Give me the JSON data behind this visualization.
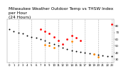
{
  "title": "Milwaukee Weather Outdoor Temp vs THSW Index",
  "title2": "per Hour",
  "title3": "(24 Hours)",
  "bg_color": "#ffffff",
  "grid_color": "#888888",
  "xlim": [
    -0.5,
    23.5
  ],
  "ylim": [
    25,
    90
  ],
  "ytick_values": [
    30,
    40,
    50,
    60,
    70,
    80
  ],
  "xtick_labels": [
    "0",
    "1",
    "2",
    "3",
    "4",
    "5",
    "6",
    "7",
    "8",
    "9",
    "10",
    "11",
    "12",
    "13",
    "14",
    "15",
    "16",
    "17",
    "18",
    "19",
    "20",
    "21",
    "22",
    "23"
  ],
  "temp_color": "#ff0000",
  "thsw_color": "#ff8800",
  "dot_color": "#000000",
  "vgrid_hours": [
    2,
    5,
    8,
    11,
    14,
    17,
    20,
    23
  ],
  "temp_data": [
    [
      7,
      75
    ],
    [
      8,
      72
    ],
    [
      9,
      68
    ],
    [
      10,
      63
    ],
    [
      11,
      58
    ],
    [
      12,
      53
    ],
    [
      13,
      60
    ],
    [
      14,
      65
    ],
    [
      15,
      62
    ],
    [
      16,
      58
    ],
    [
      23,
      82
    ]
  ],
  "thsw_data": [
    [
      8,
      52
    ],
    [
      9,
      50
    ],
    [
      10,
      47
    ],
    [
      14,
      57
    ],
    [
      19,
      38
    ],
    [
      20,
      33
    ]
  ],
  "black_data": [
    [
      0,
      75
    ],
    [
      1,
      72
    ],
    [
      2,
      70
    ],
    [
      3,
      68
    ],
    [
      4,
      65
    ],
    [
      5,
      63
    ],
    [
      6,
      62
    ],
    [
      7,
      60
    ],
    [
      8,
      58
    ],
    [
      9,
      55
    ],
    [
      10,
      53
    ],
    [
      11,
      50
    ],
    [
      12,
      47
    ],
    [
      13,
      45
    ],
    [
      14,
      43
    ],
    [
      15,
      42
    ],
    [
      16,
      41
    ],
    [
      17,
      40
    ],
    [
      18,
      39
    ],
    [
      19,
      38
    ],
    [
      20,
      37
    ],
    [
      21,
      36
    ],
    [
      22,
      35
    ],
    [
      23,
      34
    ]
  ],
  "dot_size": 4,
  "title_fontsize": 4.2,
  "tick_fontsize": 2.8
}
